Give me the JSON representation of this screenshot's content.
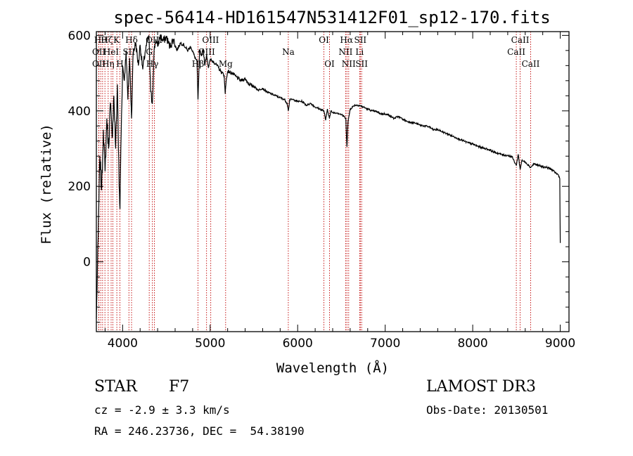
{
  "chart_data": {
    "type": "line",
    "title": "spec-56414-HD161547N531412F01_sp12-170.fits",
    "xlabel": "Wavelength (Å)",
    "ylabel": "Flux (relative)",
    "xlim": [
      3700,
      9100
    ],
    "ylim": [
      -185,
      610
    ],
    "x_ticks": [
      4000,
      5000,
      6000,
      7000,
      8000,
      9000
    ],
    "y_ticks": [
      0,
      200,
      400,
      600
    ],
    "series": [
      {
        "name": "flux",
        "x": [
          3700,
          3720,
          3740,
          3760,
          3780,
          3800,
          3820,
          3840,
          3860,
          3880,
          3900,
          3920,
          3940,
          3960,
          3970,
          3980,
          4000,
          4020,
          4040,
          4060,
          4080,
          4102,
          4120,
          4150,
          4180,
          4200,
          4230,
          4260,
          4300,
          4320,
          4340,
          4350,
          4360,
          4380,
          4400,
          4430,
          4460,
          4500,
          4540,
          4580,
          4620,
          4660,
          4700,
          4740,
          4780,
          4820,
          4850,
          4861,
          4880,
          4900,
          4920,
          4940,
          4960,
          4980,
          5000,
          5040,
          5080,
          5120,
          5160,
          5172,
          5183,
          5200,
          5250,
          5300,
          5350,
          5400,
          5450,
          5500,
          5550,
          5600,
          5650,
          5700,
          5750,
          5800,
          5850,
          5880,
          5893,
          5910,
          5950,
          6000,
          6050,
          6100,
          6150,
          6200,
          6250,
          6300,
          6320,
          6340,
          6363,
          6380,
          6400,
          6450,
          6500,
          6530,
          6550,
          6563,
          6575,
          6600,
          6650,
          6700,
          6750,
          6800,
          6850,
          6900,
          6950,
          7000,
          7050,
          7100,
          7150,
          7200,
          7250,
          7300,
          7350,
          7400,
          7450,
          7500,
          7550,
          7600,
          7650,
          7700,
          7750,
          7800,
          7850,
          7900,
          7950,
          8000,
          8050,
          8100,
          8150,
          8200,
          8250,
          8300,
          8350,
          8400,
          8450,
          8498,
          8520,
          8542,
          8560,
          8600,
          8640,
          8662,
          8700,
          8750,
          8800,
          8850,
          8900,
          8950,
          8980,
          8995,
          9000
        ],
        "values": [
          -150,
          60,
          280,
          190,
          350,
          240,
          380,
          300,
          420,
          330,
          440,
          300,
          470,
          200,
          140,
          300,
          520,
          480,
          560,
          430,
          540,
          380,
          555,
          580,
          520,
          575,
          510,
          560,
          600,
          450,
          420,
          490,
          560,
          590,
          570,
          600,
          585,
          595,
          570,
          590,
          560,
          580,
          575,
          560,
          570,
          545,
          530,
          430,
          560,
          545,
          565,
          520,
          550,
          515,
          535,
          530,
          520,
          505,
          495,
          445,
          480,
          505,
          500,
          490,
          480,
          485,
          470,
          465,
          455,
          460,
          450,
          445,
          440,
          435,
          430,
          420,
          400,
          430,
          430,
          425,
          425,
          415,
          420,
          410,
          405,
          400,
          375,
          405,
          380,
          400,
          395,
          395,
          390,
          385,
          380,
          305,
          370,
          405,
          415,
          415,
          410,
          405,
          400,
          398,
          392,
          392,
          388,
          380,
          385,
          378,
          372,
          370,
          367,
          362,
          360,
          358,
          350,
          350,
          345,
          340,
          335,
          330,
          325,
          320,
          315,
          312,
          307,
          303,
          300,
          296,
          290,
          287,
          283,
          282,
          278,
          255,
          285,
          245,
          268,
          265,
          255,
          250,
          260,
          255,
          252,
          250,
          245,
          235,
          230,
          220,
          50
        ]
      }
    ],
    "line_markers": [
      {
        "wavelength": 3727,
        "label": "OII"
      },
      {
        "wavelength": 3729,
        "label": "OII"
      },
      {
        "wavelength": 3750,
        "label": "Hθ"
      },
      {
        "wavelength": 3771,
        "label": "Hη"
      },
      {
        "wavelength": 3798,
        "label": "Hζ"
      },
      {
        "wavelength": 3835,
        "label": "Hη"
      },
      {
        "wavelength": 3869,
        "label": "HeI"
      },
      {
        "wavelength": 3889,
        "label": "HeI"
      },
      {
        "wavelength": 3934,
        "label": "K"
      },
      {
        "wavelength": 3969,
        "label": "H"
      },
      {
        "wavelength": 4072,
        "label": "SII"
      },
      {
        "wavelength": 4102,
        "label": "Hδ"
      },
      {
        "wavelength": 4304,
        "label": "G"
      },
      {
        "wavelength": 4340,
        "label": "Hγ"
      },
      {
        "wavelength": 4363,
        "label": "OIII"
      },
      {
        "wavelength": 4861,
        "label": "Hβ"
      },
      {
        "wavelength": 4959,
        "label": "OIII"
      },
      {
        "wavelength": 5007,
        "label": "OIII"
      },
      {
        "wavelength": 5177,
        "label": "Mg"
      },
      {
        "wavelength": 5893,
        "label": "Na"
      },
      {
        "wavelength": 6300,
        "label": "OI"
      },
      {
        "wavelength": 6364,
        "label": "OI"
      },
      {
        "wavelength": 6548,
        "label": "NII"
      },
      {
        "wavelength": 6563,
        "label": "Hα"
      },
      {
        "wavelength": 6583,
        "label": "NII"
      },
      {
        "wavelength": 6708,
        "label": "Li"
      },
      {
        "wavelength": 6716,
        "label": "SII"
      },
      {
        "wavelength": 6731,
        "label": "SII"
      },
      {
        "wavelength": 8498,
        "label": "CaII"
      },
      {
        "wavelength": 8542,
        "label": "CaII"
      },
      {
        "wavelength": 8662,
        "label": "CaII"
      }
    ],
    "line_label_texts": [
      {
        "text": "Hθ",
        "wavelength": 3745,
        "row": 1,
        "anchor": "middle"
      },
      {
        "text": "Hζ",
        "wavelength": 3820,
        "row": 1,
        "anchor": "middle"
      },
      {
        "text": "K",
        "wavelength": 3930,
        "row": 1,
        "anchor": "middle"
      },
      {
        "text": "Hδ",
        "wavelength": 4102,
        "row": 1,
        "anchor": "middle"
      },
      {
        "text": "OIII",
        "wavelength": 4360,
        "row": 1,
        "anchor": "middle"
      },
      {
        "text": "OIII",
        "wavelength": 5005,
        "row": 1,
        "anchor": "middle"
      },
      {
        "text": "OI",
        "wavelength": 6300,
        "row": 1,
        "anchor": "middle"
      },
      {
        "text": "Hα",
        "wavelength": 6558,
        "row": 1,
        "anchor": "middle"
      },
      {
        "text": "SII",
        "wavelength": 6716,
        "row": 1,
        "anchor": "middle"
      },
      {
        "text": "CaII",
        "wavelength": 8542,
        "row": 1,
        "anchor": "middle"
      },
      {
        "text": "OII",
        "wavelength": 3729,
        "row": 2,
        "anchor": "middle"
      },
      {
        "text": "HeI",
        "wavelength": 3869,
        "row": 2,
        "anchor": "middle"
      },
      {
        "text": "SII",
        "wavelength": 4072,
        "row": 2,
        "anchor": "middle"
      },
      {
        "text": "G",
        "wavelength": 4304,
        "row": 2,
        "anchor": "middle"
      },
      {
        "text": "OIII",
        "wavelength": 4959,
        "row": 2,
        "anchor": "middle"
      },
      {
        "text": "Na",
        "wavelength": 5893,
        "row": 2,
        "anchor": "middle"
      },
      {
        "text": "NII",
        "wavelength": 6548,
        "row": 2,
        "anchor": "middle"
      },
      {
        "text": "Li",
        "wavelength": 6708,
        "row": 2,
        "anchor": "middle"
      },
      {
        "text": "CaII",
        "wavelength": 8498,
        "row": 2,
        "anchor": "middle"
      },
      {
        "text": "OII",
        "wavelength": 3729,
        "row": 3,
        "anchor": "middle"
      },
      {
        "text": "Hη",
        "wavelength": 3835,
        "row": 3,
        "anchor": "middle"
      },
      {
        "text": "H",
        "wavelength": 3969,
        "row": 3,
        "anchor": "middle"
      },
      {
        "text": "Hγ",
        "wavelength": 4340,
        "row": 3,
        "anchor": "middle"
      },
      {
        "text": "Hβ",
        "wavelength": 4861,
        "row": 3,
        "anchor": "middle"
      },
      {
        "text": "Mg",
        "wavelength": 5177,
        "row": 3,
        "anchor": "middle"
      },
      {
        "text": "OI",
        "wavelength": 6364,
        "row": 3,
        "anchor": "middle"
      },
      {
        "text": "NII",
        "wavelength": 6583,
        "row": 3,
        "anchor": "middle"
      },
      {
        "text": "SII",
        "wavelength": 6731,
        "row": 3,
        "anchor": "middle"
      },
      {
        "text": "CaII",
        "wavelength": 8662,
        "row": 3,
        "anchor": "middle"
      }
    ]
  },
  "info": {
    "object_class": "STAR",
    "subclass": "F7",
    "survey": "LAMOST DR3",
    "cz": "cz = -2.9 ± 3.3 km/s",
    "obs_date": "Obs-Date: 20130501",
    "radec": "RA = 246.23736, DEC =  54.38190"
  },
  "colors": {
    "spectrum": "#000000",
    "marker": "#c00000",
    "frame": "#000000"
  }
}
